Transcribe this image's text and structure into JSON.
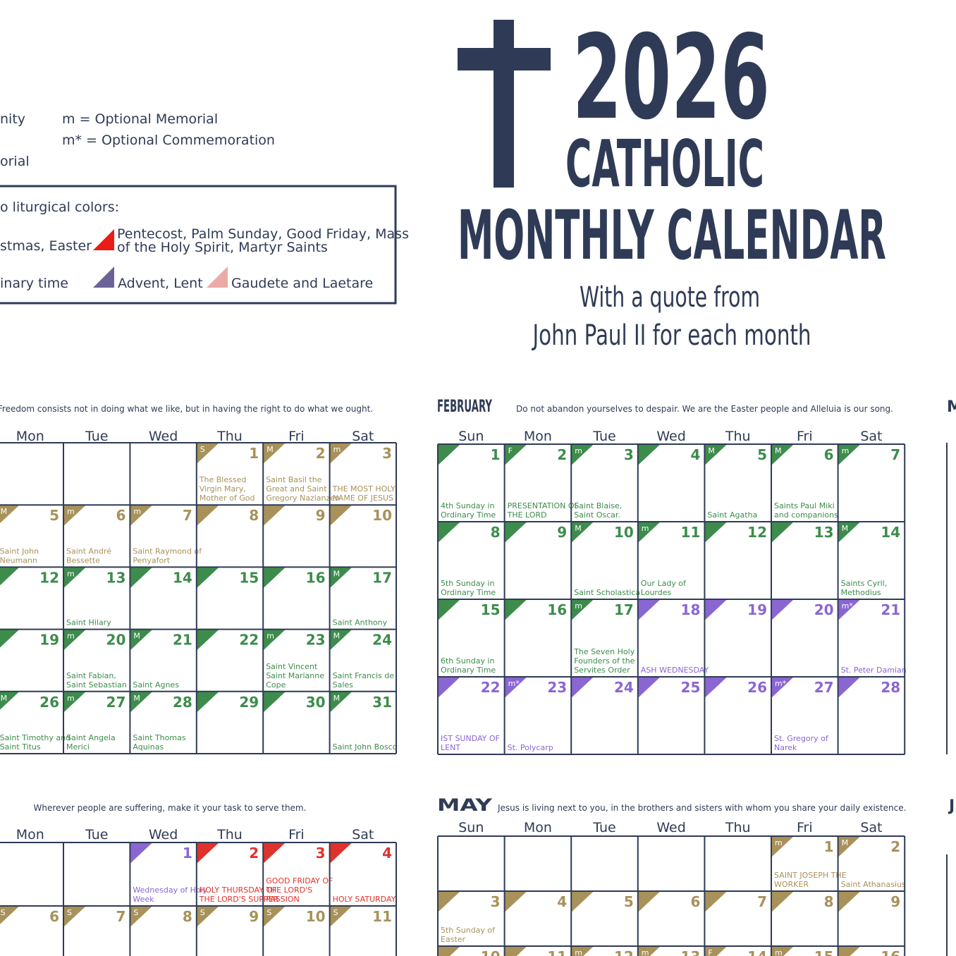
{
  "header": {
    "year": "2026",
    "title_line1": "CATHOLIC",
    "title_line2": "MONTHLY CALENDAR",
    "subtitle_line1": "With a quote from",
    "subtitle_line2": "John Paul II for each month"
  },
  "legend": {
    "ranks": [
      "nity",
      "orial",
      "m = Optional Memorial",
      "m* = Optional Commemoration"
    ],
    "colors_heading": "o liturgical colors:",
    "colors": [
      {
        "season": "white",
        "text": [
          "stmas, Easter"
        ]
      },
      {
        "season": "red",
        "text": [
          "Pentecost, Palm Sunday, Good Friday, Mass",
          "of the Holy Spirit, Martyr Saints"
        ]
      },
      {
        "season": "green",
        "text": [
          "inary time"
        ]
      },
      {
        "season": "purple",
        "text": [
          "Advent, Lent"
        ]
      },
      {
        "season": "rose",
        "text": [
          "Gaudete and Laetare"
        ]
      }
    ]
  },
  "season_colors": {
    "green": "#3d8c4c",
    "gold": "#a8925a",
    "purple": "#8a66d2",
    "red": "#e0322c",
    "rose": "#ebaaa6",
    "white": "#ffffff",
    "legend_purple": "#6b6398",
    "legend_red": "#ea1c18"
  },
  "calendars": [
    {
      "quote": "Freedom consists not in doing what we like, but in having the right to do what we ought.",
      "weekdays": [
        "Mon",
        "Tue",
        "Wed",
        "Thu",
        "Fri",
        "Sat"
      ],
      "weeks": [
        [
          null,
          null,
          null,
          {
            "day": 1,
            "rank": "S",
            "season": "gold",
            "note": "The Blessed Virgin Mary, Mother of God"
          },
          {
            "day": 2,
            "rank": "M",
            "season": "gold",
            "note": "Saint Basil the Great and Saint Gregory Nazianzen"
          },
          {
            "day": 3,
            "rank": "m",
            "season": "gold",
            "note": "THE MOST HOLY NAME OF JESUS"
          }
        ],
        [
          {
            "day": 5,
            "rank": "M",
            "season": "gold",
            "note": "Saint John Neumann"
          },
          {
            "day": 6,
            "rank": "m",
            "season": "gold",
            "note": "Saint André Bessette"
          },
          {
            "day": 7,
            "rank": "m",
            "season": "gold",
            "note": "Saint Raymond of Penyafort"
          },
          {
            "day": 8,
            "season": "gold"
          },
          {
            "day": 9,
            "season": "gold"
          },
          {
            "day": 10,
            "season": "gold"
          }
        ],
        [
          {
            "day": 12,
            "season": "green"
          },
          {
            "day": 13,
            "rank": "m",
            "season": "green",
            "note": "Saint Hilary"
          },
          {
            "day": 14,
            "season": "green"
          },
          {
            "day": 15,
            "season": "green"
          },
          {
            "day": 16,
            "season": "green"
          },
          {
            "day": 17,
            "rank": "M",
            "season": "green",
            "note": "Saint Anthony"
          }
        ],
        [
          {
            "day": 19,
            "season": "green"
          },
          {
            "day": 20,
            "rank": "m",
            "season": "green",
            "note": "Saint Fabian, Saint Sebastian"
          },
          {
            "day": 21,
            "rank": "M",
            "season": "green",
            "note": "Saint Agnes"
          },
          {
            "day": 22,
            "season": "green"
          },
          {
            "day": 23,
            "rank": "m",
            "season": "green",
            "note": "Saint Vincent Saint Marianne Cope"
          },
          {
            "day": 24,
            "rank": "M",
            "season": "green",
            "note": "Saint Francis de Sales"
          }
        ],
        [
          {
            "day": 26,
            "rank": "M",
            "season": "green",
            "note": "Saint Timothy and Saint Titus"
          },
          {
            "day": 27,
            "rank": "m",
            "season": "green",
            "note": "Saint Angela Merici"
          },
          {
            "day": 28,
            "rank": "M",
            "season": "green",
            "note": "Saint Thomas Aquinas"
          },
          {
            "day": 29,
            "season": "green"
          },
          {
            "day": 30,
            "season": "green"
          },
          {
            "day": 31,
            "rank": "M",
            "season": "green",
            "note": "Saint John Bosco"
          }
        ]
      ]
    },
    {
      "name": "FEBRUARY",
      "quote": "Do not abandon yourselves to despair. We are the Easter people and Alleluia is our song.",
      "weekdays": [
        "Sun",
        "Mon",
        "Tue",
        "Wed",
        "Thu",
        "Fri",
        "Sat"
      ],
      "weeks": [
        [
          {
            "day": 1,
            "season": "green",
            "note": "4th Sunday in Ordinary Time"
          },
          {
            "day": 2,
            "rank": "F",
            "season": "green",
            "note": "PRESENTATION OF THE LORD"
          },
          {
            "day": 3,
            "rank": "m",
            "season": "green",
            "note": "Saint Blaise, Saint Oscar."
          },
          {
            "day": 4,
            "season": "green"
          },
          {
            "day": 5,
            "rank": "M",
            "season": "green",
            "note": "Saint Agatha"
          },
          {
            "day": 6,
            "rank": "M",
            "season": "green",
            "note": "Saints Paul Miki and companions"
          },
          {
            "day": 7,
            "rank": "m",
            "season": "green"
          }
        ],
        [
          {
            "day": 8,
            "season": "green",
            "note": "5th Sunday in Ordinary Time"
          },
          {
            "day": 9,
            "season": "green"
          },
          {
            "day": 10,
            "rank": "M",
            "season": "green",
            "note": "Saint Scholastica"
          },
          {
            "day": 11,
            "rank": "m",
            "season": "green",
            "note": "Our Lady of Lourdes"
          },
          {
            "day": 12,
            "season": "green"
          },
          {
            "day": 13,
            "season": "green"
          },
          {
            "day": 14,
            "rank": "M",
            "season": "green",
            "note": "Saints Cyril, Methodius"
          }
        ],
        [
          {
            "day": 15,
            "season": "green",
            "note": "6th Sunday in Ordinary Time"
          },
          {
            "day": 16,
            "season": "green"
          },
          {
            "day": 17,
            "rank": "m",
            "season": "green",
            "note": "The Seven Holy Founders of the Servites Order"
          },
          {
            "day": 18,
            "season": "purple",
            "note": "ASH WEDNESDAY"
          },
          {
            "day": 19,
            "season": "purple"
          },
          {
            "day": 20,
            "season": "purple"
          },
          {
            "day": 21,
            "rank": "m*",
            "season": "purple",
            "note": "St. Peter Damian"
          }
        ],
        [
          {
            "day": 22,
            "season": "purple",
            "note": "IST SUNDAY OF LENT"
          },
          {
            "day": 23,
            "rank": "m*",
            "season": "purple",
            "note": "St. Polycarp"
          },
          {
            "day": 24,
            "season": "purple"
          },
          {
            "day": 25,
            "season": "purple"
          },
          {
            "day": 26,
            "season": "purple"
          },
          {
            "day": 27,
            "rank": "m*",
            "season": "purple",
            "note": "St. Gregory of Narek"
          },
          {
            "day": 28,
            "season": "purple"
          }
        ]
      ]
    },
    {
      "quote": "Wherever people are suffering, make it your task to serve them.",
      "weekdays": [
        "Mon",
        "Tue",
        "Wed",
        "Thu",
        "Fri",
        "Sat"
      ],
      "weeks": [
        [
          null,
          null,
          {
            "day": 1,
            "season": "purple",
            "note": "Wednesday of Holy Week"
          },
          {
            "day": 2,
            "season": "red",
            "note": "HOLY THURSDAY OF THE LORD'S SUPPER"
          },
          {
            "day": 3,
            "season": "red",
            "note": "GOOD FRIDAY OF THE LORD'S PASSION"
          },
          {
            "day": 4,
            "season": "red",
            "note": "HOLY SATURDAY"
          }
        ],
        [
          {
            "day": 6,
            "rank": "S",
            "season": "gold"
          },
          {
            "day": 7,
            "rank": "S",
            "season": "gold"
          },
          {
            "day": 8,
            "rank": "S",
            "season": "gold"
          },
          {
            "day": 9,
            "rank": "S",
            "season": "gold"
          },
          {
            "day": 10,
            "rank": "S",
            "season": "gold"
          },
          {
            "day": 11,
            "rank": "S",
            "season": "gold"
          }
        ]
      ]
    },
    {
      "name": "MAY",
      "quote": "Jesus is living next to you, in the brothers and sisters with whom you share your daily existence.",
      "weekdays": [
        "Sun",
        "Mon",
        "Tue",
        "Wed",
        "Thu",
        "Fri",
        "Sat"
      ],
      "weeks": [
        [
          null,
          null,
          null,
          null,
          null,
          {
            "day": 1,
            "rank": "m",
            "season": "gold",
            "note": "SAINT JOSEPH THE WORKER"
          },
          {
            "day": 2,
            "rank": "M",
            "season": "gold",
            "note": "Saint Athanasius"
          }
        ],
        [
          {
            "day": 3,
            "season": "gold",
            "note": "5th Sunday of Easter"
          },
          {
            "day": 4,
            "season": "gold"
          },
          {
            "day": 5,
            "season": "gold"
          },
          {
            "day": 6,
            "season": "gold"
          },
          {
            "day": 7,
            "season": "gold"
          },
          {
            "day": 8,
            "season": "gold"
          },
          {
            "day": 9,
            "season": "gold"
          }
        ],
        [
          {
            "day": 10,
            "season": "gold"
          },
          {
            "day": 11,
            "season": "gold"
          },
          {
            "day": 12,
            "rank": "m",
            "season": "gold"
          },
          {
            "day": 13,
            "rank": "m",
            "season": "gold"
          },
          {
            "day": 14,
            "rank": "F",
            "season": "gold"
          },
          {
            "day": 15,
            "rank": "m",
            "season": "gold"
          },
          {
            "day": 16,
            "season": "gold"
          }
        ]
      ]
    }
  ],
  "edge_labels": [
    "M",
    "J"
  ]
}
